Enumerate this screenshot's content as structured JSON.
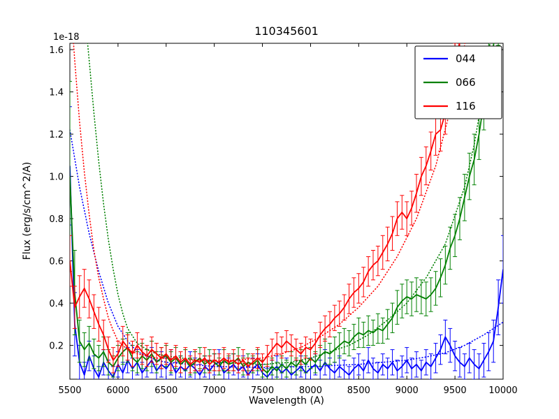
{
  "chart_data": {
    "type": "line",
    "title": "110345601",
    "xlabel": "Wavelength (A)",
    "ylabel": "Flux (erg/s/cm^2/A)",
    "y_offset_text": "1e-18",
    "xlim": [
      5500,
      10000
    ],
    "ylim": [
      0.04,
      1.63
    ],
    "xticks": [
      5500,
      6000,
      6500,
      7000,
      7500,
      8000,
      8500,
      9000,
      9500,
      10000
    ],
    "yticks": [
      0.2,
      0.4,
      0.6,
      0.8,
      1.0,
      1.2,
      1.4,
      1.6
    ],
    "grid": false,
    "legend_position": "upper right",
    "legend": [
      "044",
      "066",
      "116"
    ],
    "series": [
      {
        "name": "044",
        "color": "#0000ff",
        "x0": 5500,
        "dx": 50,
        "y": [
          1.05,
          0.3,
          0.12,
          0.06,
          0.15,
          0.09,
          0.05,
          0.12,
          0.08,
          0.05,
          0.11,
          0.07,
          0.13,
          0.09,
          0.12,
          0.07,
          0.1,
          0.13,
          0.08,
          0.11,
          0.09,
          0.12,
          0.07,
          0.1,
          0.08,
          0.11,
          0.09,
          0.06,
          0.1,
          0.08,
          0.11,
          0.12,
          0.07,
          0.09,
          0.11,
          0.08,
          0.1,
          0.06,
          0.09,
          0.11,
          0.07,
          0.05,
          0.08,
          0.1,
          0.07,
          0.09,
          0.06,
          0.08,
          0.1,
          0.07,
          0.09,
          0.11,
          0.08,
          0.12,
          0.09,
          0.07,
          0.1,
          0.08,
          0.06,
          0.09,
          0.11,
          0.08,
          0.13,
          0.09,
          0.07,
          0.11,
          0.09,
          0.12,
          0.08,
          0.1,
          0.13,
          0.09,
          0.11,
          0.08,
          0.12,
          0.1,
          0.14,
          0.18,
          0.24,
          0.2,
          0.15,
          0.12,
          0.1,
          0.14,
          0.11,
          0.09,
          0.13,
          0.17,
          0.22,
          0.38,
          0.56
        ],
        "yerr": [
          0.28,
          0.15,
          0.08,
          0.06,
          0.07,
          0.06,
          0.05,
          0.06,
          0.05,
          0.05,
          0.06,
          0.05,
          0.06,
          0.05,
          0.06,
          0.05,
          0.05,
          0.06,
          0.05,
          0.06,
          0.05,
          0.06,
          0.05,
          0.05,
          0.05,
          0.06,
          0.05,
          0.05,
          0.05,
          0.05,
          0.05,
          0.06,
          0.05,
          0.05,
          0.05,
          0.05,
          0.05,
          0.04,
          0.05,
          0.05,
          0.04,
          0.04,
          0.05,
          0.05,
          0.04,
          0.05,
          0.04,
          0.05,
          0.05,
          0.04,
          0.05,
          0.05,
          0.05,
          0.06,
          0.05,
          0.05,
          0.05,
          0.05,
          0.04,
          0.05,
          0.05,
          0.05,
          0.06,
          0.05,
          0.05,
          0.05,
          0.05,
          0.06,
          0.05,
          0.05,
          0.06,
          0.05,
          0.06,
          0.05,
          0.06,
          0.06,
          0.07,
          0.07,
          0.08,
          0.08,
          0.07,
          0.07,
          0.06,
          0.07,
          0.07,
          0.07,
          0.08,
          0.09,
          0.1,
          0.13,
          0.16
        ],
        "model": {
          "x": [
            5500,
            5600,
            5700,
            5800,
            5900,
            6000,
            6100,
            6200,
            6300,
            6400,
            6500,
            7000,
            7500,
            8000,
            8500,
            9000,
            9200,
            9400,
            9600,
            9800,
            10000
          ],
          "y": [
            1.22,
            0.95,
            0.73,
            0.55,
            0.4,
            0.29,
            0.22,
            0.17,
            0.15,
            0.13,
            0.12,
            0.1,
            0.095,
            0.1,
            0.11,
            0.13,
            0.145,
            0.165,
            0.2,
            0.25,
            0.31
          ]
        }
      },
      {
        "name": "066",
        "color": "#008000",
        "x0": 5500,
        "dx": 50,
        "y": [
          1.0,
          0.45,
          0.22,
          0.18,
          0.21,
          0.16,
          0.14,
          0.17,
          0.12,
          0.1,
          0.14,
          0.17,
          0.19,
          0.14,
          0.12,
          0.15,
          0.13,
          0.16,
          0.12,
          0.14,
          0.15,
          0.12,
          0.14,
          0.11,
          0.13,
          0.1,
          0.12,
          0.14,
          0.11,
          0.13,
          0.12,
          0.1,
          0.13,
          0.11,
          0.12,
          0.14,
          0.1,
          0.12,
          0.11,
          0.13,
          0.09,
          0.07,
          0.1,
          0.08,
          0.11,
          0.09,
          0.12,
          0.1,
          0.13,
          0.11,
          0.14,
          0.12,
          0.15,
          0.17,
          0.16,
          0.18,
          0.2,
          0.22,
          0.21,
          0.24,
          0.26,
          0.25,
          0.27,
          0.26,
          0.28,
          0.27,
          0.3,
          0.33,
          0.38,
          0.41,
          0.43,
          0.42,
          0.44,
          0.43,
          0.42,
          0.44,
          0.47,
          0.52,
          0.58,
          0.66,
          0.72,
          0.8,
          0.9,
          1.0,
          1.08,
          1.2,
          1.35,
          1.5,
          1.62,
          1.78,
          1.95
        ],
        "yerr": [
          0.45,
          0.2,
          0.1,
          0.08,
          0.08,
          0.07,
          0.06,
          0.07,
          0.06,
          0.05,
          0.06,
          0.06,
          0.07,
          0.06,
          0.05,
          0.06,
          0.05,
          0.06,
          0.05,
          0.05,
          0.05,
          0.05,
          0.05,
          0.04,
          0.05,
          0.04,
          0.05,
          0.05,
          0.04,
          0.05,
          0.04,
          0.04,
          0.05,
          0.04,
          0.04,
          0.05,
          0.04,
          0.04,
          0.04,
          0.05,
          0.04,
          0.04,
          0.04,
          0.04,
          0.04,
          0.04,
          0.05,
          0.04,
          0.05,
          0.04,
          0.05,
          0.05,
          0.05,
          0.06,
          0.05,
          0.06,
          0.06,
          0.06,
          0.06,
          0.06,
          0.07,
          0.06,
          0.07,
          0.06,
          0.07,
          0.06,
          0.07,
          0.07,
          0.08,
          0.08,
          0.08,
          0.08,
          0.08,
          0.08,
          0.08,
          0.08,
          0.08,
          0.09,
          0.09,
          0.1,
          0.1,
          0.1,
          0.11,
          0.11,
          0.12,
          0.12,
          0.13,
          0.14,
          0.15,
          0.16,
          0.18
        ],
        "model": {
          "x": [
            5620,
            5700,
            5750,
            5800,
            5850,
            5900,
            5950,
            6000,
            6050,
            6100,
            6200,
            6300,
            6400,
            6500,
            7000,
            7500,
            7800,
            8000,
            8200,
            8400,
            8600,
            8800,
            9000,
            9200,
            9400,
            9600,
            9700,
            9800,
            9900
          ],
          "y": [
            1.95,
            1.55,
            1.3,
            1.07,
            0.87,
            0.7,
            0.56,
            0.44,
            0.35,
            0.28,
            0.21,
            0.18,
            0.16,
            0.15,
            0.12,
            0.11,
            0.12,
            0.14,
            0.17,
            0.2,
            0.25,
            0.32,
            0.4,
            0.52,
            0.68,
            0.95,
            1.15,
            1.42,
            1.75
          ]
        }
      },
      {
        "name": "116",
        "color": "#ff0000",
        "x0": 5500,
        "dx": 50,
        "y": [
          0.6,
          0.38,
          0.43,
          0.47,
          0.42,
          0.36,
          0.3,
          0.25,
          0.18,
          0.13,
          0.16,
          0.22,
          0.19,
          0.16,
          0.2,
          0.17,
          0.15,
          0.18,
          0.16,
          0.14,
          0.16,
          0.13,
          0.15,
          0.12,
          0.14,
          0.11,
          0.13,
          0.12,
          0.14,
          0.11,
          0.13,
          0.12,
          0.14,
          0.12,
          0.13,
          0.11,
          0.13,
          0.1,
          0.12,
          0.14,
          0.12,
          0.15,
          0.18,
          0.21,
          0.19,
          0.22,
          0.2,
          0.18,
          0.16,
          0.19,
          0.18,
          0.21,
          0.25,
          0.28,
          0.3,
          0.33,
          0.35,
          0.38,
          0.42,
          0.45,
          0.47,
          0.5,
          0.55,
          0.58,
          0.6,
          0.64,
          0.68,
          0.73,
          0.8,
          0.83,
          0.8,
          0.85,
          0.92,
          1.0,
          1.05,
          1.12,
          1.2,
          1.22,
          1.3,
          1.4,
          1.52,
          1.64,
          1.78,
          1.92
        ],
        "yerr": [
          0.12,
          0.1,
          0.1,
          0.09,
          0.09,
          0.08,
          0.08,
          0.07,
          0.06,
          0.06,
          0.06,
          0.07,
          0.06,
          0.06,
          0.06,
          0.06,
          0.05,
          0.06,
          0.05,
          0.05,
          0.05,
          0.05,
          0.05,
          0.05,
          0.05,
          0.04,
          0.05,
          0.04,
          0.05,
          0.04,
          0.05,
          0.04,
          0.05,
          0.04,
          0.05,
          0.04,
          0.05,
          0.04,
          0.04,
          0.05,
          0.04,
          0.05,
          0.05,
          0.05,
          0.05,
          0.05,
          0.05,
          0.05,
          0.05,
          0.05,
          0.05,
          0.05,
          0.06,
          0.06,
          0.06,
          0.06,
          0.06,
          0.06,
          0.07,
          0.07,
          0.07,
          0.07,
          0.07,
          0.07,
          0.07,
          0.08,
          0.08,
          0.08,
          0.08,
          0.08,
          0.08,
          0.08,
          0.09,
          0.09,
          0.09,
          0.09,
          0.1,
          0.1,
          0.1,
          0.1,
          0.11,
          0.11,
          0.12,
          0.12
        ],
        "model": {
          "x": [
            5500,
            5550,
            5600,
            5650,
            5700,
            5750,
            5800,
            5850,
            5900,
            5950,
            6000,
            6100,
            6200,
            6400,
            6800,
            7200,
            7500,
            7700,
            7900,
            8100,
            8300,
            8500,
            8700,
            8900,
            9100,
            9300,
            9500,
            9600,
            9700
          ],
          "y": [
            1.88,
            1.55,
            1.26,
            1.02,
            0.82,
            0.65,
            0.52,
            0.42,
            0.33,
            0.27,
            0.22,
            0.18,
            0.16,
            0.14,
            0.13,
            0.13,
            0.14,
            0.16,
            0.19,
            0.24,
            0.3,
            0.38,
            0.48,
            0.62,
            0.8,
            1.05,
            1.4,
            1.62,
            1.95
          ]
        }
      }
    ]
  }
}
